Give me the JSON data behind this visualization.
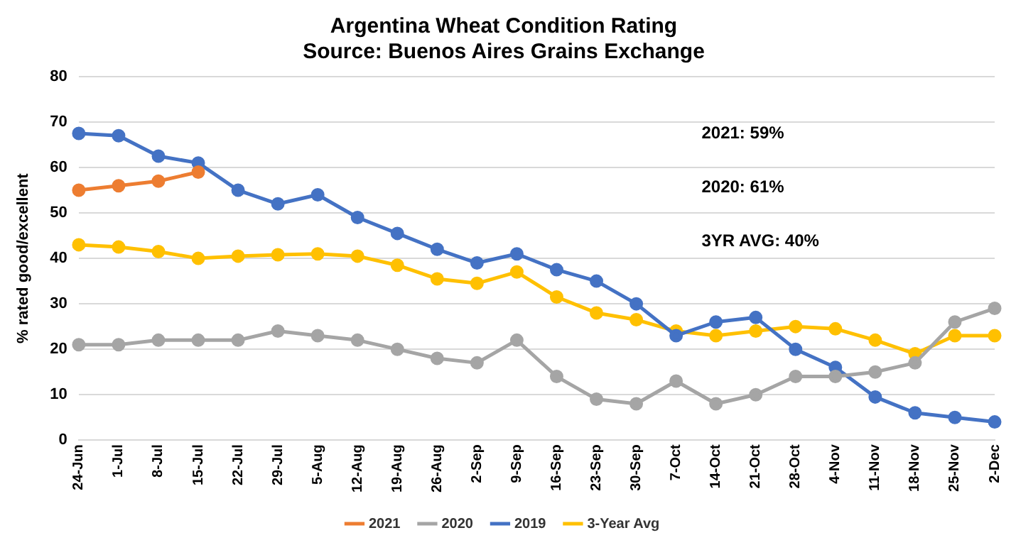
{
  "chart_data": {
    "type": "line",
    "title": "Argentina Wheat Condition Rating",
    "subtitle": "Source: Buenos Aires Grains Exchange",
    "ylabel": "% rated good/excellent",
    "categories": [
      "24-Jun",
      "1-Jul",
      "8-Jul",
      "15-Jul",
      "22-Jul",
      "29-Jul",
      "5-Aug",
      "12-Aug",
      "19-Aug",
      "26-Aug",
      "2-Sep",
      "9-Sep",
      "16-Sep",
      "23-Sep",
      "30-Sep",
      "7-Oct",
      "14-Oct",
      "21-Oct",
      "28-Oct",
      "4-Nov",
      "11-Nov",
      "18-Nov",
      "25-Nov",
      "2-Dec"
    ],
    "series": [
      {
        "name": "2021",
        "color": "#ed7d31",
        "values": [
          55,
          56,
          57,
          59,
          null,
          null,
          null,
          null,
          null,
          null,
          null,
          null,
          null,
          null,
          null,
          null,
          null,
          null,
          null,
          null,
          null,
          null,
          null,
          null
        ]
      },
      {
        "name": "2020",
        "color": "#a5a5a5",
        "values": [
          21,
          21,
          22,
          22,
          22,
          24,
          23,
          22,
          20,
          18,
          17,
          22,
          14,
          9,
          8,
          13,
          8,
          10,
          14,
          14,
          15,
          17,
          26,
          29
        ]
      },
      {
        "name": "2019",
        "color": "#4472c4",
        "values": [
          67.5,
          67,
          62.5,
          61,
          55,
          52,
          54,
          49,
          45.5,
          42,
          39,
          41,
          37.5,
          35,
          30,
          23,
          26,
          27,
          20,
          16,
          9.5,
          6,
          5,
          4
        ]
      },
      {
        "name": "3-Year Avg",
        "color": "#ffc000",
        "values": [
          43,
          42.5,
          41.5,
          40,
          40.5,
          40.8,
          41,
          40.5,
          38.5,
          35.5,
          34.5,
          37,
          31.5,
          28,
          26.5,
          24,
          23,
          24,
          25,
          24.5,
          22,
          19,
          23,
          23
        ]
      }
    ],
    "ylim": [
      0,
      80
    ],
    "yticks": [
      0,
      10,
      20,
      30,
      40,
      50,
      60,
      70,
      80
    ],
    "grid": "y",
    "legend": "bottom",
    "marker": "circle",
    "line_style": "solid",
    "annotations": [
      "2021: 59%",
      "2020: 61%",
      "3YR AVG: 40%"
    ]
  }
}
